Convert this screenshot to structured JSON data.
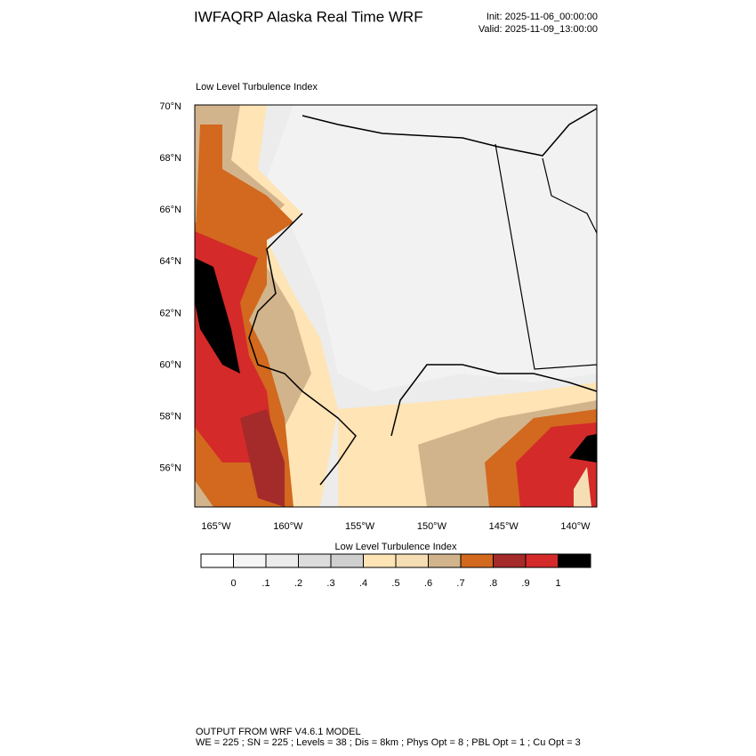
{
  "header": {
    "title": "IWFAQRP Alaska Real Time WRF",
    "init": "Init: 2025-11-06_00:00:00",
    "valid": "Valid: 2025-11-09_13:00:00"
  },
  "map": {
    "title": "Low Level Turbulence Index",
    "lat_labels": [
      "70°N",
      "68°N",
      "66°N",
      "64°N",
      "62°N",
      "60°N",
      "58°N",
      "56°N"
    ],
    "lon_labels": [
      "165°W",
      "160°W",
      "155°W",
      "150°W",
      "145°W",
      "140°W"
    ]
  },
  "colorbar": {
    "title": "Low Level Turbulence Index",
    "labels": [
      "0",
      ".1",
      ".2",
      ".3",
      ".4",
      ".5",
      ".6",
      ".7",
      ".8",
      ".9",
      "1"
    ],
    "colors": [
      "#ffffff",
      "#f5f5f5",
      "#ececec",
      "#dcdcdc",
      "#cfcfcf",
      "#ffe4b5",
      "#f5deb3",
      "#d2b48c",
      "#d2691e",
      "#a52a2a",
      "#d42a2a",
      "#000000"
    ]
  },
  "footer": {
    "line1": "OUTPUT FROM WRF V4.6.1 MODEL",
    "line2": "WE = 225 ; SN = 225 ; Levels = 38 ; Dis = 8km ; Phys Opt = 8 ; PBL Opt = 1 ; Cu Opt = 3"
  }
}
